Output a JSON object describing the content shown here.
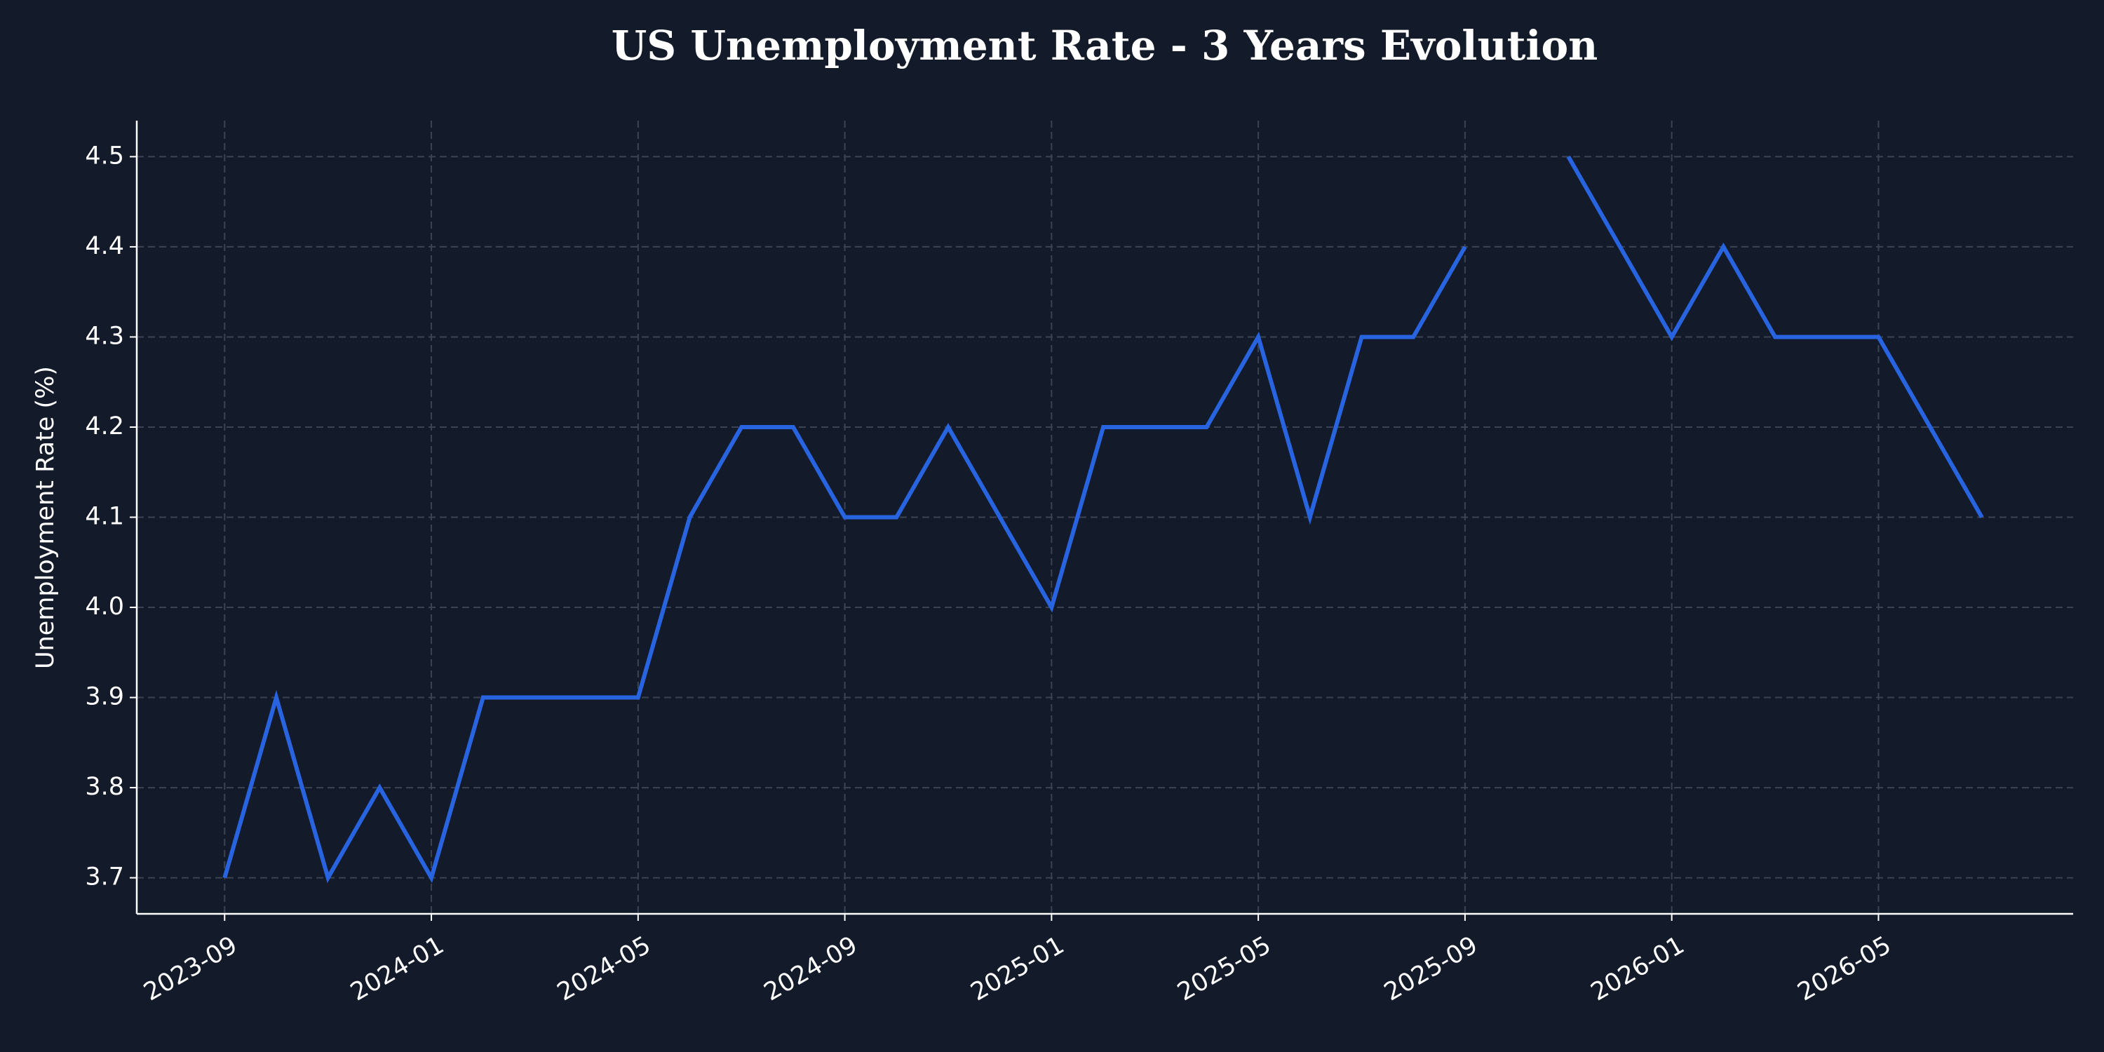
{
  "chart_data": {
    "type": "line",
    "title": "US Unemployment Rate - 3 Years Evolution",
    "y_label": "Unemployment Rate (%)",
    "x": [
      "2023-09",
      "2023-10",
      "2023-11",
      "2023-12",
      "2024-01",
      "2024-02",
      "2024-03",
      "2024-04",
      "2024-05",
      "2024-06",
      "2024-07",
      "2024-08",
      "2024-09",
      "2024-10",
      "2024-11",
      "2024-12",
      "2025-01",
      "2025-02",
      "2025-03",
      "2025-04",
      "2025-05",
      "2025-06",
      "2025-07",
      "2025-08",
      "2025-09",
      "2025-10",
      "2025-11",
      "2025-12",
      "2026-01",
      "2026-02",
      "2026-03",
      "2026-04",
      "2026-05",
      "2026-06",
      "2026-07"
    ],
    "series": [
      {
        "name": "Unemployment Rate",
        "color": "#2864e0",
        "values": [
          3.7,
          3.9,
          3.7,
          3.8,
          3.7,
          3.9,
          3.9,
          3.9,
          3.9,
          4.1,
          4.2,
          4.2,
          4.1,
          4.1,
          4.2,
          4.1,
          4.0,
          4.2,
          4.2,
          4.2,
          4.3,
          4.1,
          4.3,
          4.3,
          4.4,
          null,
          4.5,
          4.4,
          4.3,
          4.4,
          4.3,
          4.3,
          4.3,
          4.2,
          4.1
        ]
      }
    ],
    "xlim": [
      "2023-07-10",
      "2026-08-24"
    ],
    "xticks": [
      "2023-09",
      "2024-01",
      "2024-05",
      "2024-09",
      "2025-01",
      "2025-05",
      "2025-09",
      "2026-01",
      "2026-05"
    ],
    "ylim": [
      3.66,
      4.54
    ],
    "yticks": [
      3.7,
      3.8,
      3.9,
      {
        "value": 4,
        "label": "4.0"
      },
      4.1,
      4.2,
      4.3,
      4.4,
      4.5
    ],
    "grid": true
  }
}
